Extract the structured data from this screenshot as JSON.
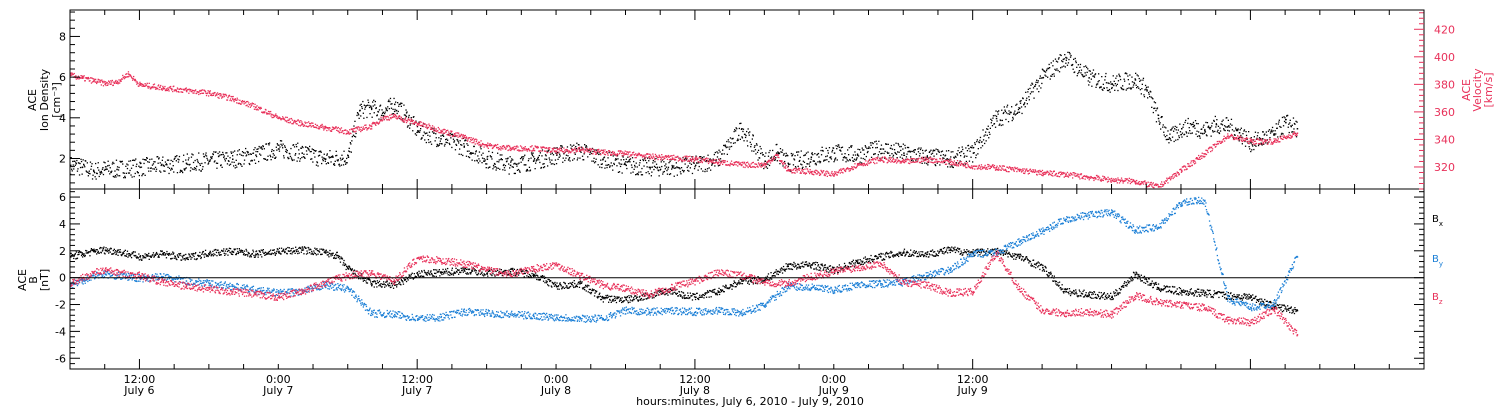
{
  "chart_data": [
    {
      "type": "scatter",
      "panel": "plasma",
      "ylabel": [
        "ACE",
        "Ion Density",
        "[cm⁻³]"
      ],
      "ylabel_right": [
        "ACE",
        "Velocity",
        "[km/s]"
      ],
      "ylim": [
        0.5,
        9.3
      ],
      "yticks": [
        2,
        4,
        6,
        8
      ],
      "ylim_right": [
        304,
        434
      ],
      "yticks_right": [
        320,
        340,
        360,
        380,
        400,
        420
      ],
      "colors": {
        "density": "#000000",
        "velocity": "#e8315a"
      },
      "series": [
        {
          "axis": "left",
          "x": [
            0,
            1,
            2,
            3,
            4,
            6,
            8,
            10,
            12,
            14,
            16,
            18,
            20,
            22,
            24,
            25,
            26,
            27,
            28,
            29,
            30,
            32,
            34,
            36,
            38,
            40,
            42,
            44,
            46,
            48,
            50,
            52,
            54,
            56,
            58,
            60,
            61,
            62,
            64,
            66,
            68,
            70,
            72,
            74,
            76,
            78,
            80,
            82,
            84,
            86,
            88,
            90,
            92,
            93,
            94,
            95,
            96,
            97,
            98,
            99,
            100,
            101,
            102,
            103,
            104,
            105,
            106
          ],
          "y": [
            1.7,
            1.6,
            1.4,
            1.5,
            1.5,
            1.6,
            1.7,
            1.8,
            1.9,
            2.0,
            2.2,
            2.5,
            2.3,
            2.0,
            2.1,
            4.4,
            4.5,
            4.3,
            4.7,
            4.1,
            3.4,
            3.0,
            2.6,
            2.0,
            1.7,
            1.9,
            2.2,
            2.4,
            2.0,
            1.7,
            1.6,
            1.6,
            1.7,
            2.0,
            3.5,
            1.9,
            2.3,
            1.8,
            2.1,
            2.3,
            2.2,
            2.5,
            2.3,
            2.1,
            2.0,
            2.3,
            4.0,
            4.5,
            6.0,
            7.0,
            6.0,
            5.7,
            5.9,
            5.4,
            4.0,
            3.0,
            3.5,
            3.6,
            3.4,
            3.7,
            3.6,
            3.3,
            2.8,
            3.0,
            3.2,
            3.8,
            3.5
          ]
        },
        {
          "axis": "right",
          "x": [
            0,
            1,
            2,
            3,
            4,
            5,
            6,
            8,
            10,
            12,
            14,
            16,
            18,
            20,
            22,
            24,
            26,
            27,
            28,
            30,
            32,
            34,
            36,
            38,
            40,
            42,
            44,
            46,
            48,
            50,
            52,
            54,
            56,
            58,
            60,
            61,
            62,
            64,
            66,
            68,
            70,
            72,
            74,
            76,
            78,
            80,
            82,
            84,
            86,
            88,
            90,
            92,
            94,
            96,
            98,
            100,
            102,
            104,
            106
          ],
          "y": [
            387,
            385,
            383,
            381,
            382,
            388,
            380,
            378,
            376,
            374,
            370,
            364,
            356,
            352,
            349,
            346,
            350,
            356,
            357,
            352,
            347,
            342,
            336,
            334,
            334,
            332,
            333,
            331,
            330,
            328,
            327,
            326,
            324,
            322,
            322,
            329,
            318,
            317,
            315,
            322,
            326,
            324,
            326,
            324,
            321,
            320,
            318,
            316,
            315,
            313,
            311,
            310,
            306,
            318,
            330,
            343,
            339,
            339,
            345
          ]
        }
      ]
    },
    {
      "type": "scatter",
      "panel": "magnetic field",
      "ylabel": [
        "ACE",
        "B",
        "[nT]"
      ],
      "ylim": [
        -6.8,
        6.6
      ],
      "yticks": [
        -6,
        -4,
        -2,
        0,
        2,
        4,
        6
      ],
      "zero_line": true,
      "xlabel": "hours:minutes,  July  6, 2010 - July  9, 2010",
      "x_hours_range": [
        0,
        117
      ],
      "xtick_hours": [
        6,
        30,
        54,
        78,
        102,
        126
      ],
      "xticks": [
        {
          "hours": 6,
          "time": "12:00",
          "date": "July 6"
        },
        {
          "hours": 18,
          "time": "0:00",
          "date": "July 7"
        },
        {
          "hours": 30,
          "time": "12:00",
          "date": "July 7"
        },
        {
          "hours": 42,
          "time": "0:00",
          "date": "July 8"
        },
        {
          "hours": 54,
          "time": "12:00",
          "date": "July 8"
        },
        {
          "hours": 66,
          "time": "0:00",
          "date": "July 9"
        },
        {
          "hours": 78,
          "time": "12:00",
          "date": "July 9"
        }
      ],
      "legend": [
        {
          "label": "B",
          "sub": "x",
          "color": "#000000"
        },
        {
          "label": "B",
          "sub": "y",
          "color": "#1b7fd6"
        },
        {
          "label": "B",
          "sub": "z",
          "color": "#e8315a"
        }
      ],
      "series": [
        {
          "name": "Bx",
          "color": "#000000",
          "x": [
            0,
            1,
            2,
            3,
            4,
            6,
            8,
            10,
            12,
            14,
            16,
            18,
            20,
            22,
            23,
            24,
            26,
            28,
            30,
            32,
            34,
            36,
            38,
            40,
            42,
            44,
            46,
            48,
            50,
            52,
            53,
            54,
            56,
            58,
            60,
            62,
            64,
            66,
            68,
            70,
            72,
            74,
            76,
            78,
            80,
            82,
            84,
            86,
            88,
            90,
            92,
            94,
            96,
            98,
            100,
            102,
            104,
            106
          ],
          "y": [
            1.6,
            1.8,
            2.0,
            2.1,
            2.0,
            1.6,
            1.8,
            1.5,
            1.9,
            2.0,
            1.8,
            2.0,
            2.1,
            1.9,
            1.7,
            0.7,
            -0.4,
            -0.5,
            0.3,
            0.4,
            0.6,
            0.4,
            0.5,
            0.3,
            -0.6,
            -0.4,
            -1.5,
            -1.6,
            -1.3,
            -0.9,
            -1.3,
            -1.4,
            -1.0,
            -0.2,
            -0.1,
            0.9,
            1.0,
            0.6,
            1.2,
            1.6,
            1.9,
            1.8,
            2.1,
            1.9,
            2.0,
            1.6,
            0.8,
            -1.0,
            -1.2,
            -1.4,
            0.3,
            -0.7,
            -1.0,
            -1.1,
            -1.3,
            -1.4,
            -2.1,
            -2.4
          ]
        },
        {
          "name": "By",
          "color": "#1b7fd6",
          "x": [
            0,
            1,
            2,
            3,
            4,
            6,
            8,
            10,
            12,
            14,
            16,
            18,
            20,
            22,
            24,
            26,
            28,
            30,
            32,
            34,
            36,
            38,
            40,
            42,
            44,
            46,
            48,
            50,
            52,
            54,
            56,
            58,
            60,
            62,
            64,
            66,
            68,
            70,
            72,
            74,
            76,
            78,
            80,
            82,
            84,
            86,
            88,
            90,
            92,
            94,
            96,
            98,
            100,
            102,
            104,
            106
          ],
          "y": [
            -0.5,
            -0.2,
            0.2,
            0.3,
            0.2,
            0.0,
            0.1,
            -0.2,
            -0.4,
            -0.6,
            -0.9,
            -1.1,
            -1.0,
            -0.5,
            -0.8,
            -2.6,
            -2.7,
            -3.0,
            -2.9,
            -2.5,
            -2.6,
            -2.7,
            -2.8,
            -2.9,
            -3.0,
            -3.0,
            -2.4,
            -2.5,
            -2.4,
            -2.5,
            -2.4,
            -2.6,
            -2.0,
            -0.6,
            -0.7,
            -0.9,
            -0.5,
            -0.4,
            -0.3,
            0.2,
            0.6,
            1.8,
            1.9,
            2.7,
            3.5,
            4.4,
            4.7,
            4.9,
            3.6,
            3.8,
            5.6,
            5.8,
            -1.5,
            -2.2,
            -1.9,
            1.6
          ]
        },
        {
          "name": "Bz",
          "color": "#e8315a",
          "x": [
            0,
            1,
            2,
            3,
            4,
            6,
            8,
            10,
            12,
            14,
            16,
            18,
            20,
            22,
            24,
            26,
            28,
            30,
            32,
            34,
            36,
            38,
            40,
            42,
            44,
            46,
            48,
            50,
            52,
            54,
            56,
            58,
            60,
            62,
            64,
            66,
            68,
            70,
            72,
            74,
            76,
            78,
            80,
            82,
            84,
            86,
            88,
            90,
            92,
            94,
            96,
            98,
            100,
            102,
            104,
            106
          ],
          "y": [
            -0.4,
            0.0,
            0.4,
            0.6,
            0.4,
            0.2,
            -0.3,
            -0.6,
            -0.8,
            -1.0,
            -1.2,
            -1.4,
            -1.0,
            -0.3,
            0.2,
            0.4,
            -0.2,
            1.5,
            1.3,
            1.1,
            0.6,
            0.3,
            0.7,
            1.0,
            0.2,
            -0.5,
            -0.8,
            -1.2,
            -0.7,
            -0.2,
            0.4,
            0.2,
            -0.3,
            -0.4,
            0.1,
            0.5,
            0.8,
            1.1,
            -0.3,
            -0.5,
            -1.1,
            -1.0,
            1.9,
            -0.8,
            -2.4,
            -2.6,
            -2.5,
            -2.7,
            -1.3,
            -1.8,
            -2.0,
            -2.2,
            -3.1,
            -3.3,
            -2.3,
            -4.2
          ]
        }
      ]
    }
  ]
}
